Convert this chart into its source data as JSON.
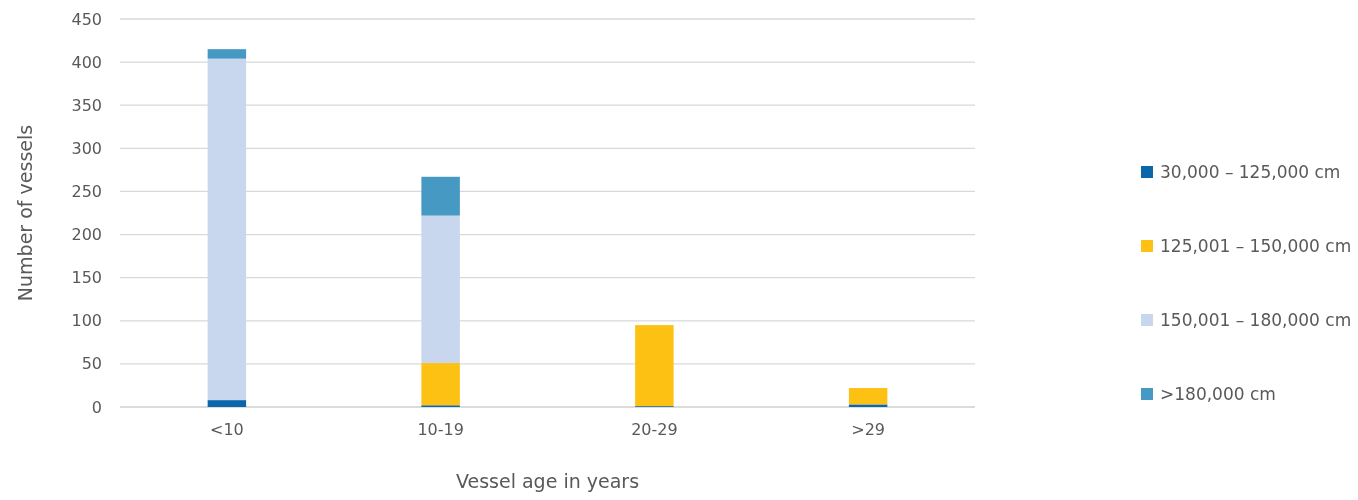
{
  "chart_data": {
    "type": "bar",
    "stacked": true,
    "xlabel": "Vessel age in years",
    "ylabel": "Number of vessels",
    "categories": [
      "<10",
      "10-19",
      "20-29",
      ">29"
    ],
    "series": [
      {
        "name": "30,000 – 125,000 cm",
        "color": "#0b67a9",
        "values": [
          8,
          2,
          1,
          3
        ]
      },
      {
        "name": "125,001 – 150,000 cm",
        "color": "#fdc113",
        "values": [
          0,
          49,
          94,
          19
        ]
      },
      {
        "name": "150,001 – 180,000 cm",
        "color": "#c8d6ee",
        "values": [
          396,
          171,
          0,
          0
        ]
      },
      {
        "name": ">180,000 cm",
        "color": "#4599c3",
        "values": [
          11,
          45,
          0,
          0
        ]
      }
    ],
    "ylim": [
      0,
      450
    ],
    "yticks": [
      0,
      50,
      100,
      150,
      200,
      250,
      300,
      350,
      400,
      450
    ],
    "grid": "y",
    "legend": "right"
  }
}
